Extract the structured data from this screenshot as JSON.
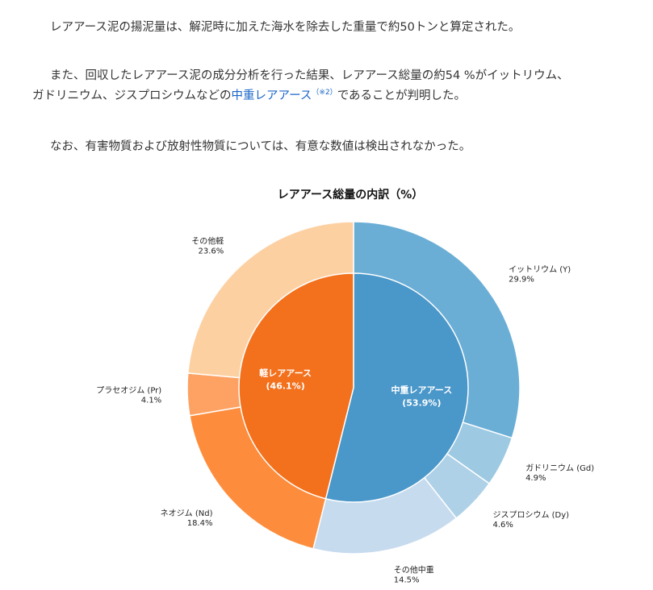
{
  "paragraphs": {
    "p1": "レアアース泥の揚泥量は、解泥時に加えた海水を除去した重量で約50トンと算定された。",
    "p2_line1": "また、回収したレアアース泥の成分分析を行った結果、レアアース総量の約54 %がイットリウム、",
    "p2_line2_pre": "ガドリニウム、ジスプロシウムなどの",
    "p2_link": "中重レアアース",
    "p2_sup": "（※2）",
    "p2_line2_post": "であることが判明した。",
    "p3": "なお、有害物質および放射性物質については、有意な数値は検出されなかった。"
  },
  "chart_data": {
    "type": "pie",
    "title": "レアアース総量の内訳（%）",
    "inner": [
      {
        "label": "中重レアアース",
        "value_text": "(53.9%)",
        "value": 53.9,
        "color": "#4a97c9"
      },
      {
        "label": "軽レアアース",
        "value_text": "(46.1%)",
        "value": 46.1,
        "color": "#f3711d"
      }
    ],
    "outer": [
      {
        "label": "イットリウム (Y)",
        "value_text": "29.9%",
        "value": 29.9,
        "color": "#6aaed6"
      },
      {
        "label": "ガドリニウム (Gd)",
        "value_text": "4.9%",
        "value": 4.9,
        "color": "#9dc9e2"
      },
      {
        "label": "ジスプロシウム (Dy)",
        "value_text": "4.6%",
        "value": 4.6,
        "color": "#aed1e7"
      },
      {
        "label": "その他中重",
        "value_text": "14.5%",
        "value": 14.5,
        "color": "#c7dbef"
      },
      {
        "label": "ネオジム (Nd)",
        "value_text": "18.4%",
        "value": 18.4,
        "color": "#fd8d3c"
      },
      {
        "label": "プラセオジム (Pr)",
        "value_text": "4.1%",
        "value": 4.1,
        "color": "#fda262"
      },
      {
        "label": "その他軽",
        "value_text": "23.6%",
        "value": 23.6,
        "color": "#fdd0a2"
      }
    ]
  }
}
